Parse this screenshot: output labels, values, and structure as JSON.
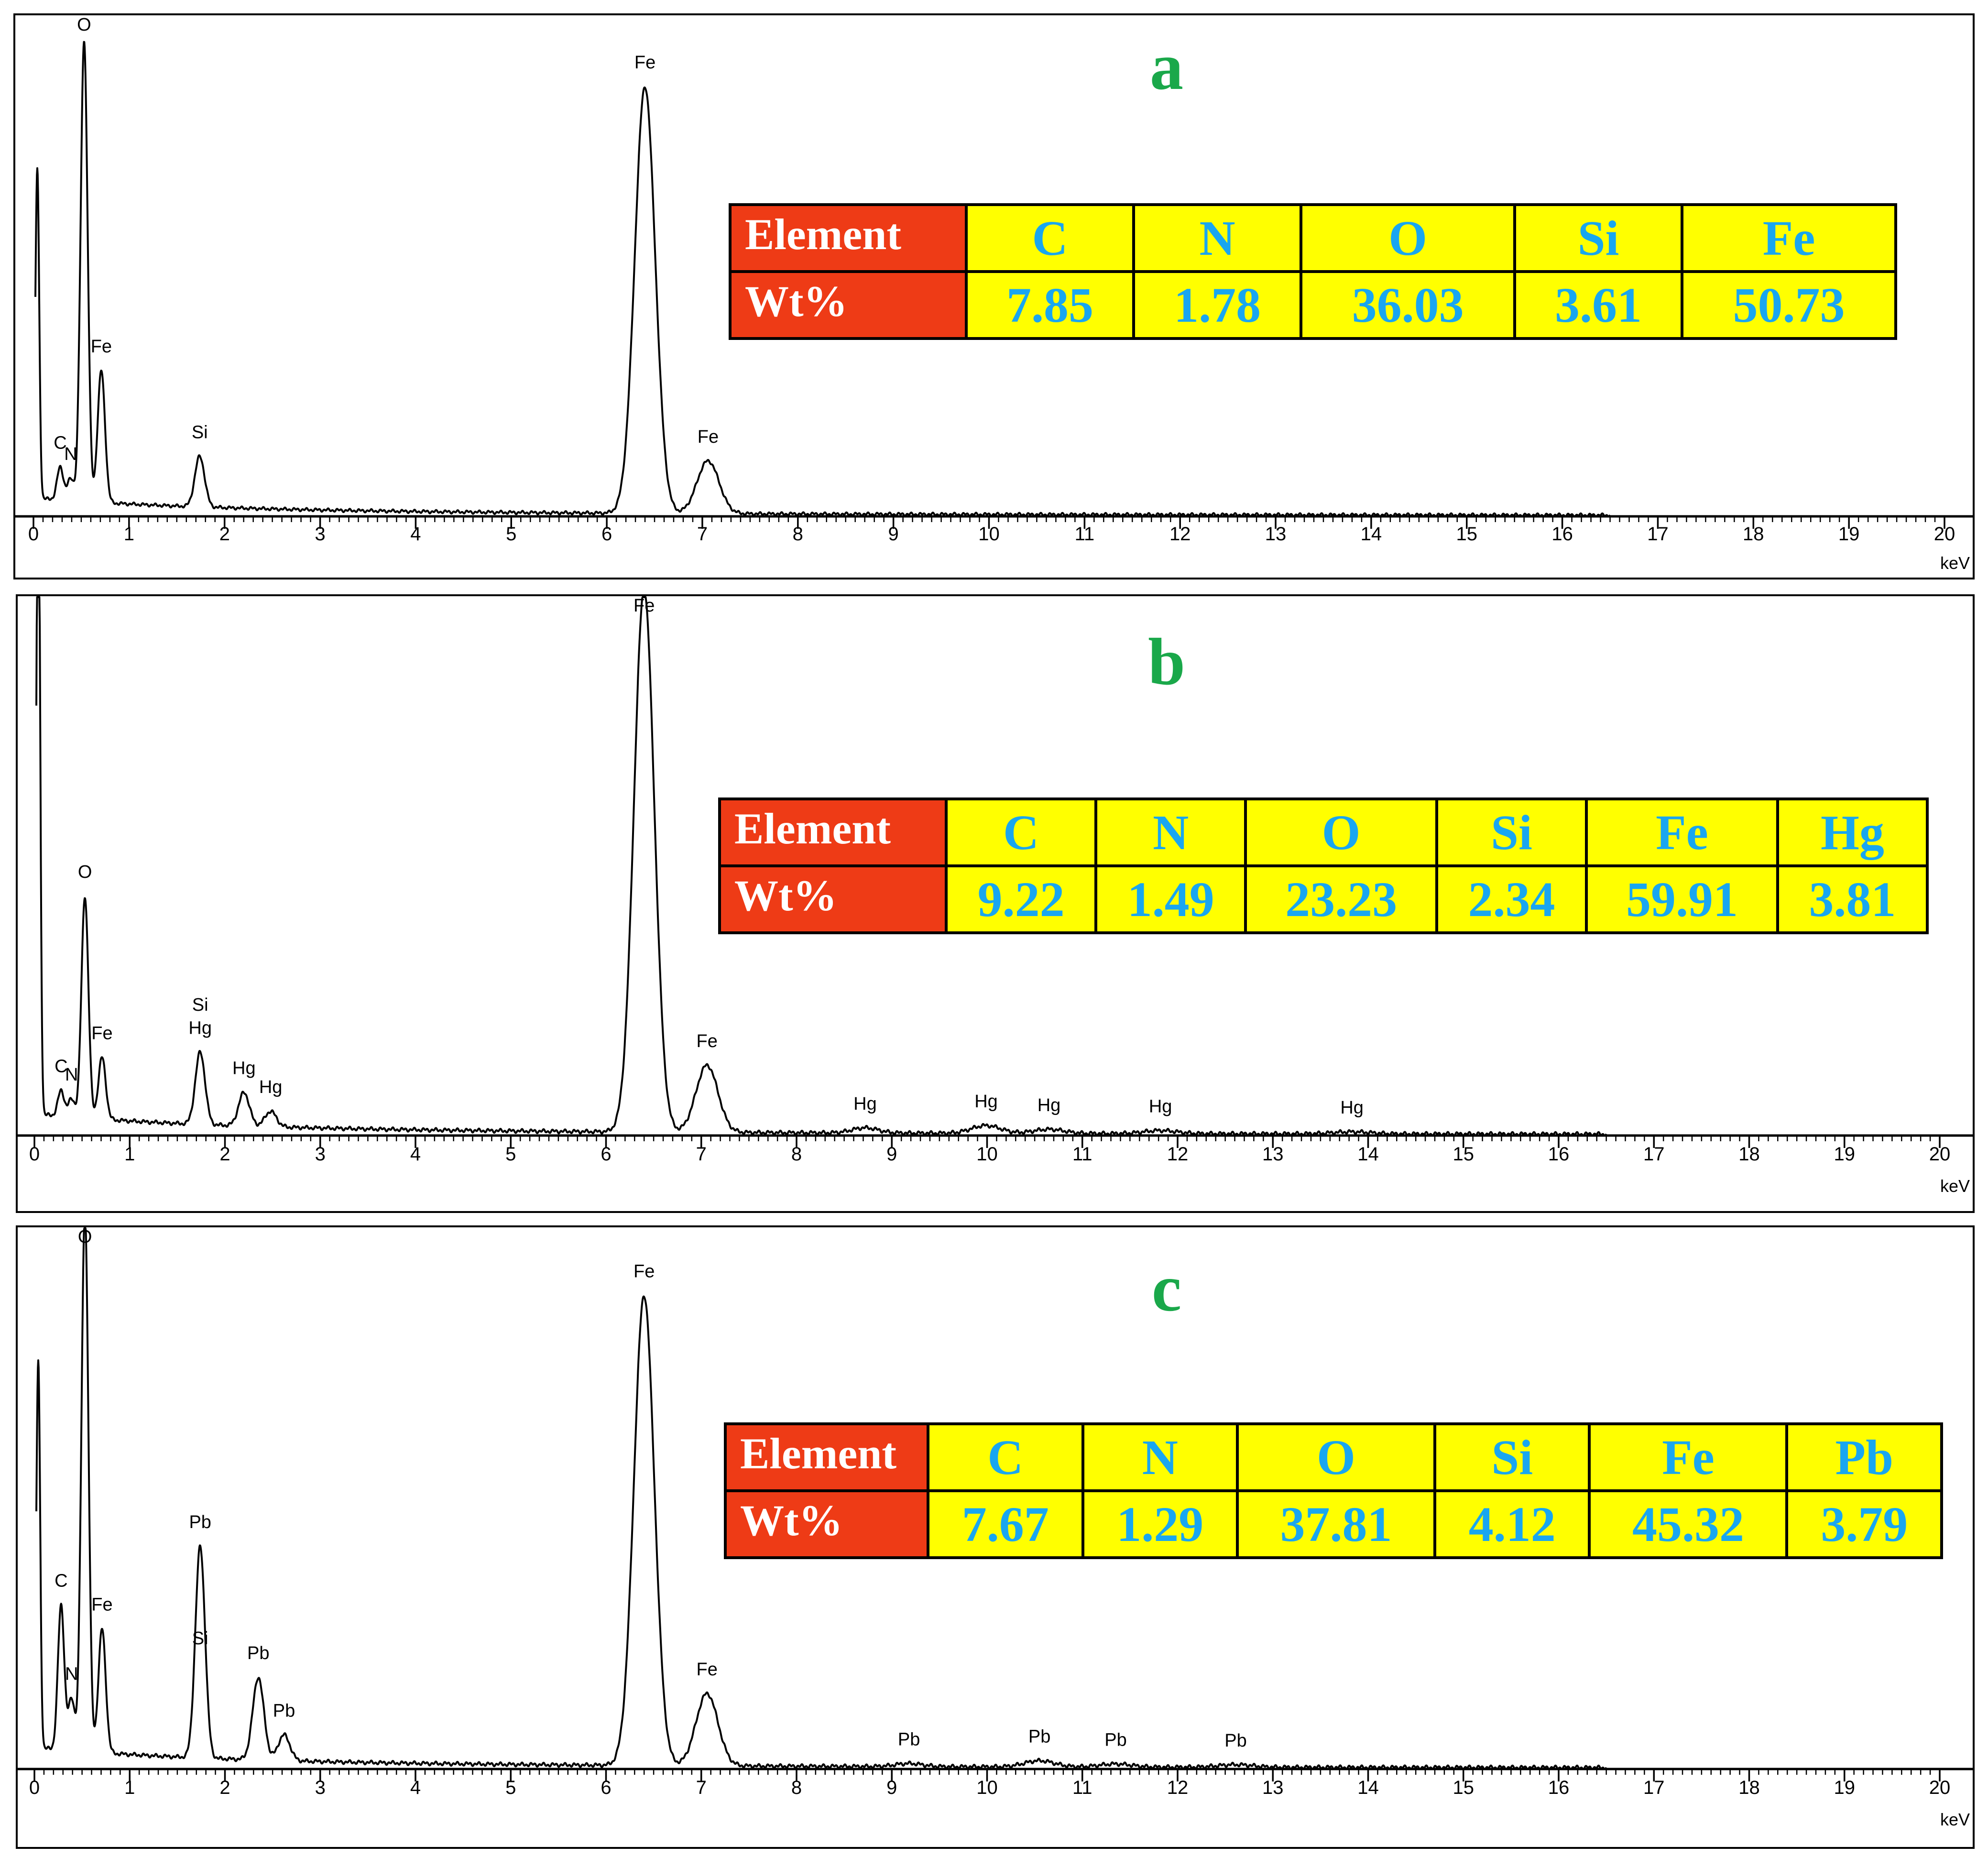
{
  "chart_data": [
    {
      "type": "line",
      "panel_label": "a",
      "xunit": "keV",
      "xlim": [
        0,
        20
      ],
      "xticks": [
        0,
        1,
        2,
        3,
        4,
        5,
        6,
        7,
        8,
        9,
        10,
        11,
        12,
        13,
        14,
        15,
        16,
        17,
        18,
        19,
        20
      ],
      "table": {
        "row_labels": [
          "Element",
          "Wt%"
        ],
        "elements": [
          "C",
          "N",
          "O",
          "Si",
          "Fe"
        ],
        "wt_percent": [
          "7.85",
          "1.78",
          "36.03",
          "3.61",
          "50.73"
        ]
      },
      "peaks": [
        {
          "label": "C",
          "x": 0.28,
          "y": 0.075
        },
        {
          "label": "N",
          "x": 0.39,
          "y": 0.05
        },
        {
          "label": "O",
          "x": 0.53,
          "y": 1.05
        },
        {
          "label": "Fe",
          "x": 0.71,
          "y": 0.3
        },
        {
          "label": "Si",
          "x": 1.74,
          "y": 0.115
        },
        {
          "label": "Fe",
          "x": 6.4,
          "y": 0.97
        },
        {
          "label": "Fe",
          "x": 7.06,
          "y": 0.12
        }
      ]
    },
    {
      "type": "line",
      "panel_label": "b",
      "xunit": "keV",
      "xlim": [
        0,
        20
      ],
      "xticks": [
        0,
        1,
        2,
        3,
        4,
        5,
        6,
        7,
        8,
        9,
        10,
        11,
        12,
        13,
        14,
        15,
        16,
        17,
        18,
        19,
        20
      ],
      "table": {
        "row_labels": [
          "Element",
          "Wt%"
        ],
        "elements": [
          "C",
          "N",
          "O",
          "Si",
          "Fe",
          "Hg"
        ],
        "wt_percent": [
          "9.22",
          "1.49",
          "23.23",
          "2.34",
          "59.91",
          "3.81"
        ]
      },
      "peaks": [
        {
          "label": "C",
          "x": 0.28,
          "y": 0.05
        },
        {
          "label": "N",
          "x": 0.39,
          "y": 0.035
        },
        {
          "label": "O",
          "x": 0.53,
          "y": 0.43
        },
        {
          "label": "Fe",
          "x": 0.71,
          "y": 0.12
        },
        {
          "label": "Si",
          "x": 1.74,
          "y": 0.0
        },
        {
          "label": "Hg",
          "x": 1.74,
          "y": 0.14
        },
        {
          "label": "Hg",
          "x": 2.2,
          "y": 0.065
        },
        {
          "label": "Hg",
          "x": 2.48,
          "y": 0.03
        },
        {
          "label": "Fe",
          "x": 6.4,
          "y": 1.05
        },
        {
          "label": "Fe",
          "x": 7.06,
          "y": 0.13
        },
        {
          "label": "Hg",
          "x": 8.72,
          "y": 0.01
        },
        {
          "label": "Hg",
          "x": 9.99,
          "y": 0.015
        },
        {
          "label": "Hg",
          "x": 10.65,
          "y": 0.008
        },
        {
          "label": "Hg",
          "x": 11.82,
          "y": 0.006
        },
        {
          "label": "Hg",
          "x": 13.83,
          "y": 0.004
        }
      ]
    },
    {
      "type": "line",
      "panel_label": "c",
      "xunit": "keV",
      "xlim": [
        0,
        20
      ],
      "xticks": [
        0,
        1,
        2,
        3,
        4,
        5,
        6,
        7,
        8,
        9,
        10,
        11,
        12,
        13,
        14,
        15,
        16,
        17,
        18,
        19,
        20
      ],
      "table": {
        "row_labels": [
          "Element",
          "Wt%"
        ],
        "elements": [
          "C",
          "N",
          "O",
          "Si",
          "Fe",
          "Pb"
        ],
        "wt_percent": [
          "7.67",
          "1.29",
          "37.81",
          "4.12",
          "45.32",
          "3.79"
        ]
      },
      "peaks": [
        {
          "label": "C",
          "x": 0.28,
          "y": 0.28
        },
        {
          "label": "N",
          "x": 0.39,
          "y": 0.1
        },
        {
          "label": "O",
          "x": 0.53,
          "y": 1.05
        },
        {
          "label": "Fe",
          "x": 0.71,
          "y": 0.24
        },
        {
          "label": "Si",
          "x": 1.74,
          "y": 0.0
        },
        {
          "label": "Pb",
          "x": 1.74,
          "y": 0.41
        },
        {
          "label": "Pb",
          "x": 2.35,
          "y": 0.16
        },
        {
          "label": "Pb",
          "x": 2.62,
          "y": 0.05
        },
        {
          "label": "Fe",
          "x": 6.4,
          "y": 0.91
        },
        {
          "label": "Fe",
          "x": 7.06,
          "y": 0.14
        },
        {
          "label": "Pb",
          "x": 9.18,
          "y": 0.006
        },
        {
          "label": "Pb",
          "x": 10.55,
          "y": 0.012
        },
        {
          "label": "Pb",
          "x": 11.35,
          "y": 0.006
        },
        {
          "label": "Pb",
          "x": 12.61,
          "y": 0.005
        }
      ]
    }
  ]
}
